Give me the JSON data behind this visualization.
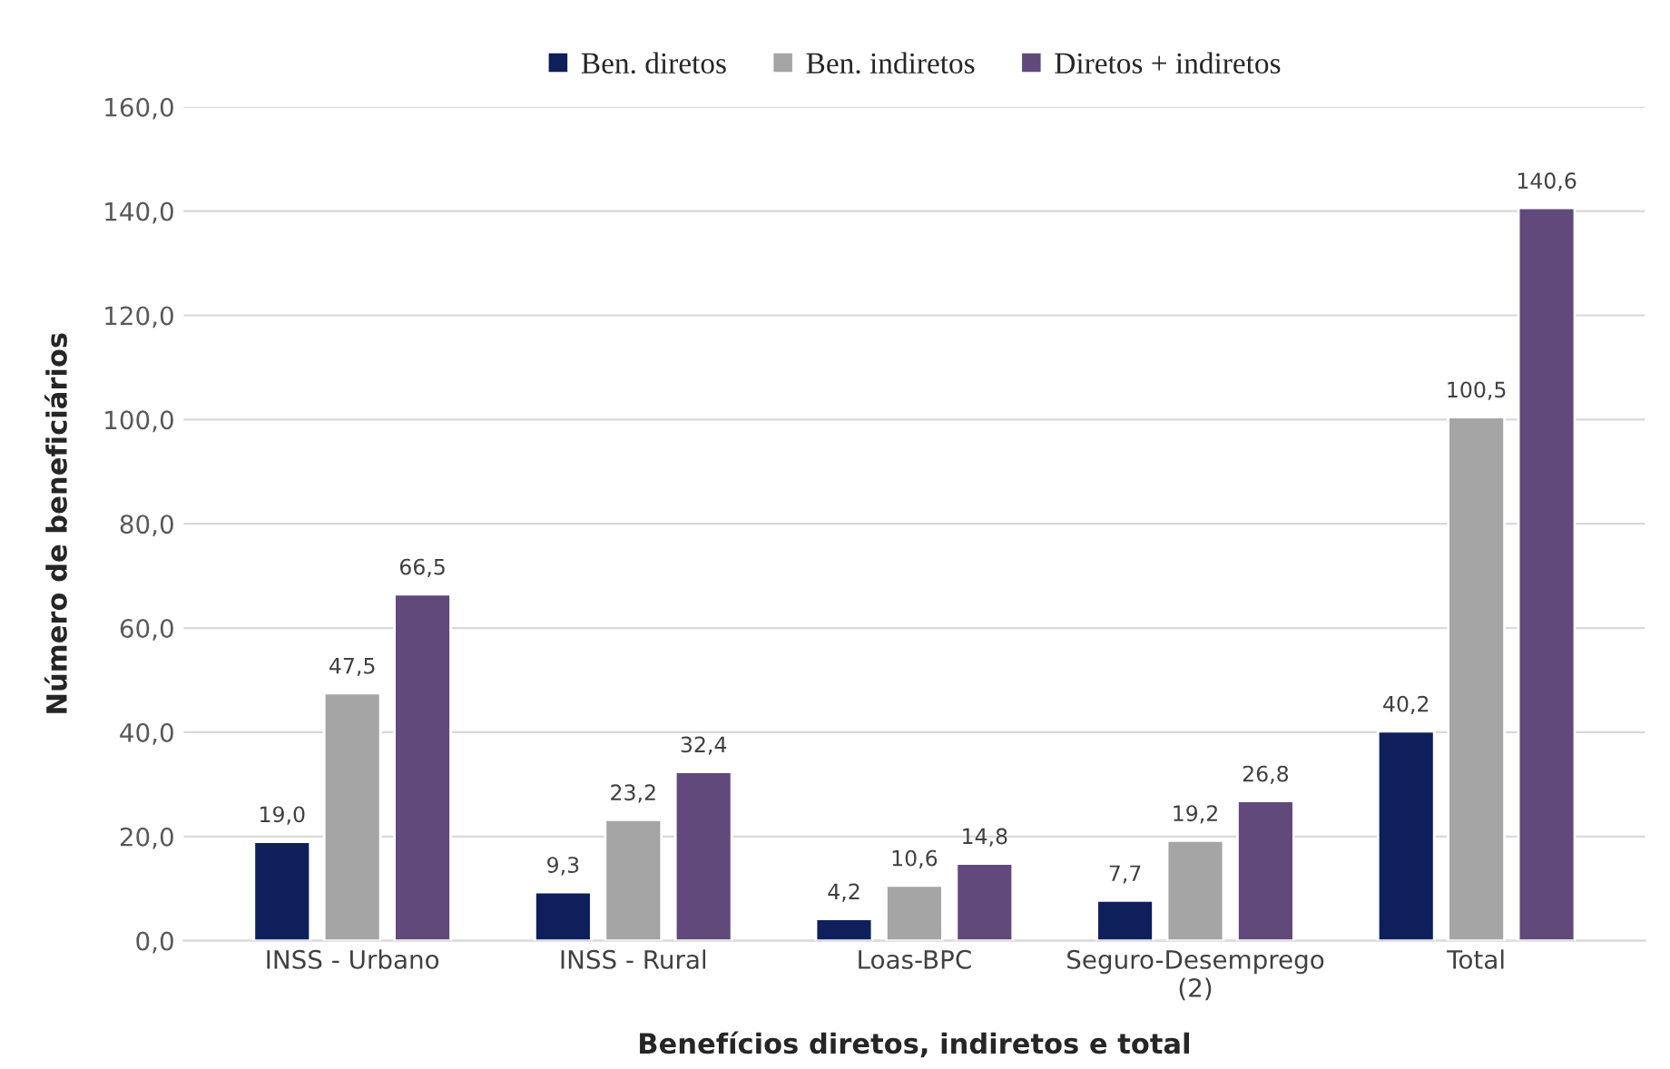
{
  "chart_data": {
    "type": "bar",
    "xlabel": "Benefícios diretos, indiretos e total",
    "ylabel": "Número de beneficiários",
    "categories": [
      "INSS - Urbano",
      "INSS - Rural",
      "Loas-BPC",
      "Seguro-Desemprego\n(2)",
      "Total"
    ],
    "series": [
      {
        "name": "Ben. diretos",
        "color": "#0e1f5b",
        "values": [
          19.0,
          9.3,
          4.2,
          7.7,
          40.2
        ],
        "value_labels": [
          "19,0",
          "9,3",
          "4,2",
          "7,7",
          "40,2"
        ]
      },
      {
        "name": "Ben. indiretos",
        "color": "#a5a5a5",
        "values": [
          47.5,
          23.2,
          10.6,
          19.2,
          100.5
        ],
        "value_labels": [
          "47,5",
          "23,2",
          "10,6",
          "19,2",
          "100,5"
        ]
      },
      {
        "name": "Diretos + indiretos",
        "color": "#614a7b",
        "values": [
          66.5,
          32.4,
          14.8,
          26.8,
          140.6
        ],
        "value_labels": [
          "66,5",
          "32,4",
          "14,8",
          "26,8",
          "140,6"
        ]
      }
    ],
    "ylim": [
      0,
      160
    ],
    "yticks": [
      {
        "value": 0,
        "label": "0,0"
      },
      {
        "value": 20,
        "label": "20,0"
      },
      {
        "value": 40,
        "label": "40,0"
      },
      {
        "value": 60,
        "label": "60,0"
      },
      {
        "value": 80,
        "label": "80,0"
      },
      {
        "value": 100,
        "label": "100,0"
      },
      {
        "value": 120,
        "label": "120,0"
      },
      {
        "value": 140,
        "label": "140,0"
      },
      {
        "value": 160,
        "label": "160,0"
      }
    ],
    "grid": "y",
    "legend": "top"
  }
}
